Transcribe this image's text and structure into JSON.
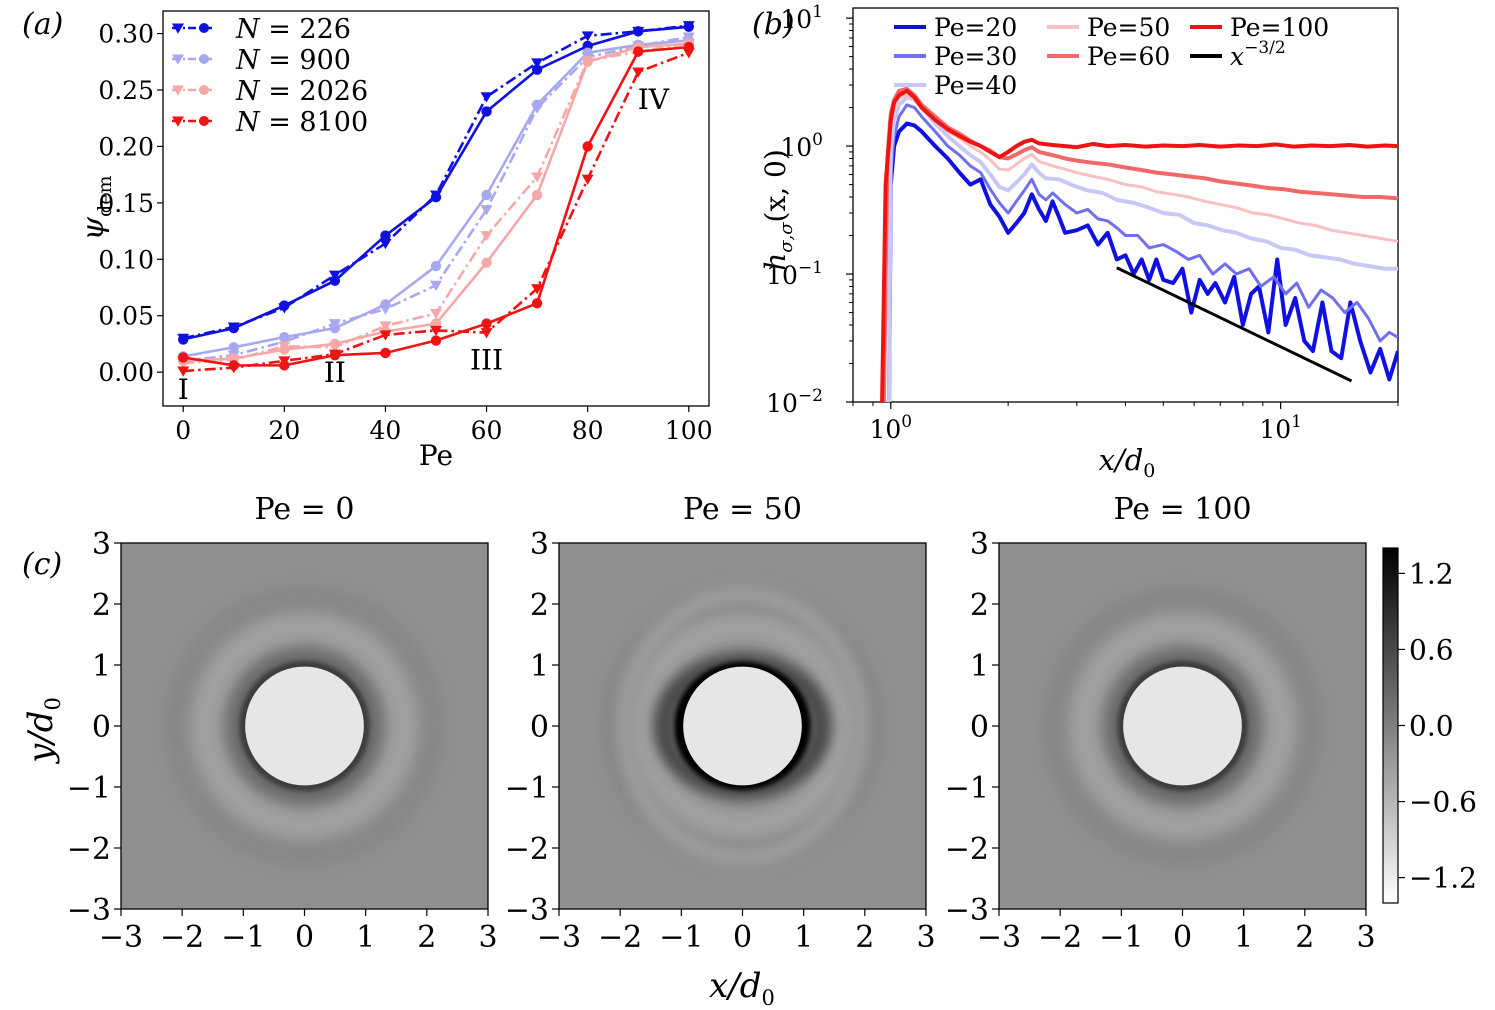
{
  "chart_data": [
    {
      "id": "a",
      "panel_label": "(a)",
      "type": "line",
      "xlabel": "Pe",
      "ylabel": "ψ",
      "ylabel_sub": "dem",
      "xlim": [
        -4,
        104
      ],
      "ylim": [
        -0.03,
        0.32
      ],
      "xticks": [
        0,
        20,
        40,
        60,
        80,
        100
      ],
      "xtick_labels": [
        "0",
        "20",
        "40",
        "60",
        "80",
        "100"
      ],
      "yticks": [
        0.0,
        0.05,
        0.1,
        0.15,
        0.2,
        0.25,
        0.3
      ],
      "ytick_labels": [
        "0.00",
        "0.05",
        "0.10",
        "0.15",
        "0.20",
        "0.25",
        "0.30"
      ],
      "legend_position": "top-left",
      "x": [
        0,
        10,
        20,
        30,
        40,
        50,
        60,
        70,
        80,
        90,
        100
      ],
      "series": [
        {
          "name": "N = 226",
          "legend_var": "N",
          "legend_value": "226",
          "color": "#1010e0",
          "circle": [
            0.029,
            0.039,
            0.059,
            0.081,
            0.121,
            0.155,
            0.231,
            0.268,
            0.289,
            0.302,
            0.306
          ],
          "triangle": [
            0.03,
            0.04,
            0.057,
            0.086,
            0.114,
            0.157,
            0.244,
            0.274,
            0.298,
            0.302,
            0.307
          ]
        },
        {
          "name": "N = 900",
          "legend_var": "N",
          "legend_value": "900",
          "color": "#a8a8f0",
          "circle": [
            0.014,
            0.022,
            0.031,
            0.039,
            0.06,
            0.094,
            0.157,
            0.237,
            0.283,
            0.29,
            0.294
          ],
          "triangle": [
            0.01,
            0.015,
            0.027,
            0.043,
            0.056,
            0.077,
            0.144,
            0.234,
            0.279,
            0.289,
            0.297
          ]
        },
        {
          "name": "N = 2026",
          "legend_var": "N",
          "legend_value": "2026",
          "color": "#f6a8a8",
          "circle": [
            0.01,
            0.012,
            0.02,
            0.025,
            0.036,
            0.043,
            0.097,
            0.157,
            0.275,
            0.288,
            0.291
          ],
          "triangle": [
            0.008,
            0.011,
            0.023,
            0.022,
            0.041,
            0.052,
            0.121,
            0.173,
            0.276,
            0.284,
            0.291
          ]
        },
        {
          "name": "N = 8100",
          "legend_var": "N",
          "legend_value": "8100",
          "color": "#ee1414",
          "circle": [
            0.013,
            0.006,
            0.006,
            0.015,
            0.017,
            0.028,
            0.043,
            0.061,
            0.2,
            0.284,
            0.288
          ],
          "triangle": [
            0.001,
            0.004,
            0.01,
            0.016,
            0.033,
            0.037,
            0.035,
            0.074,
            0.171,
            0.266,
            0.283
          ]
        }
      ],
      "annotations": [
        {
          "text": "I",
          "x": 0,
          "y": -0.015
        },
        {
          "text": "II",
          "x": 30,
          "y": 0.0
        },
        {
          "text": "III",
          "x": 60,
          "y": 0.011
        },
        {
          "text": "IV",
          "x": 93,
          "y": 0.242
        }
      ]
    },
    {
      "id": "b",
      "panel_label": "(b)",
      "type": "line",
      "xscale": "log",
      "yscale": "log",
      "xlabel": "x/d",
      "xlabel_sub": "0",
      "ylabel": "h",
      "ylabel_sub": "σ,σ",
      "ylabel_tail": "(x, 0)",
      "xlim": [
        0.8,
        20
      ],
      "ylim": [
        0.01,
        12
      ],
      "xticks": [
        {
          "value": 1,
          "base": "10",
          "exp": "0"
        },
        {
          "value": 10,
          "base": "10",
          "exp": "1"
        }
      ],
      "yticks": [
        {
          "value": 0.01,
          "base": "10",
          "exp": "−2"
        },
        {
          "value": 0.1,
          "base": "10",
          "exp": "−1"
        },
        {
          "value": 1,
          "base": "10",
          "exp": "0"
        },
        {
          "value": 10,
          "base": "10",
          "exp": "1"
        }
      ],
      "legend_position": "top-right",
      "series": [
        {
          "name": "Pe=20",
          "color": "#1010e0",
          "width": 4,
          "x": [
            0.97,
            0.99,
            1.0,
            1.02,
            1.05,
            1.1,
            1.15,
            1.2,
            1.3,
            1.4,
            1.5,
            1.6,
            1.7,
            1.8,
            1.9,
            2.0,
            2.1,
            2.2,
            2.3,
            2.4,
            2.5,
            2.6,
            2.7,
            2.8,
            3.0,
            3.2,
            3.4,
            3.6,
            3.8,
            4.0,
            4.2,
            4.4,
            4.6,
            4.8,
            5.0,
            5.3,
            5.6,
            5.9,
            6.2,
            6.5,
            6.8,
            7.2,
            7.6,
            8.0,
            8.4,
            8.8,
            9.3,
            9.8,
            10.3,
            10.9,
            11.5,
            12.1,
            12.8,
            13.5,
            14.3,
            15.1,
            16.0,
            17.0,
            18.0,
            19.0,
            20.0
          ],
          "y": [
            0.01,
            0.01,
            0.5,
            1.0,
            1.3,
            1.5,
            1.45,
            1.3,
            1.0,
            0.8,
            0.62,
            0.5,
            0.55,
            0.35,
            0.28,
            0.21,
            0.25,
            0.3,
            0.42,
            0.32,
            0.26,
            0.37,
            0.28,
            0.21,
            0.22,
            0.24,
            0.17,
            0.21,
            0.13,
            0.14,
            0.1,
            0.13,
            0.09,
            0.13,
            0.09,
            0.085,
            0.11,
            0.05,
            0.09,
            0.07,
            0.085,
            0.06,
            0.095,
            0.04,
            0.07,
            0.08,
            0.035,
            0.13,
            0.04,
            0.065,
            0.03,
            0.025,
            0.06,
            0.025,
            0.022,
            0.06,
            0.03,
            0.017,
            0.026,
            0.015,
            0.025
          ]
        },
        {
          "name": "Pe=30",
          "color": "#6f6ff0",
          "width": 3,
          "x": [
            0.97,
            0.99,
            1.0,
            1.02,
            1.05,
            1.1,
            1.15,
            1.2,
            1.3,
            1.4,
            1.5,
            1.6,
            1.7,
            1.8,
            1.9,
            2.0,
            2.1,
            2.2,
            2.3,
            2.4,
            2.5,
            2.6,
            2.8,
            3.0,
            3.2,
            3.4,
            3.6,
            3.8,
            4.0,
            4.3,
            4.6,
            5.0,
            5.4,
            5.8,
            6.2,
            6.7,
            7.2,
            7.7,
            8.3,
            8.9,
            9.6,
            10.3,
            11.0,
            11.8,
            12.7,
            13.6,
            14.6,
            15.7,
            16.8,
            18.0,
            19.0,
            20.0
          ],
          "y": [
            0.01,
            0.01,
            0.6,
            1.2,
            1.7,
            2.1,
            2.0,
            1.7,
            1.3,
            1.0,
            0.85,
            0.7,
            0.62,
            0.46,
            0.36,
            0.3,
            0.37,
            0.45,
            0.55,
            0.42,
            0.38,
            0.43,
            0.35,
            0.3,
            0.32,
            0.27,
            0.26,
            0.23,
            0.2,
            0.2,
            0.16,
            0.17,
            0.15,
            0.13,
            0.14,
            0.1,
            0.12,
            0.1,
            0.11,
            0.08,
            0.095,
            0.07,
            0.085,
            0.055,
            0.075,
            0.065,
            0.05,
            0.06,
            0.045,
            0.03,
            0.035,
            0.032
          ]
        },
        {
          "name": "Pe=40",
          "color": "#c8c8f6",
          "width": 4,
          "x": [
            0.97,
            0.99,
            1.0,
            1.02,
            1.05,
            1.1,
            1.15,
            1.2,
            1.3,
            1.4,
            1.5,
            1.6,
            1.7,
            1.8,
            1.9,
            2.0,
            2.1,
            2.2,
            2.3,
            2.4,
            2.5,
            2.7,
            2.9,
            3.2,
            3.5,
            3.8,
            4.2,
            4.6,
            5.0,
            5.5,
            6.0,
            6.5,
            7.1,
            7.7,
            8.4,
            9.2,
            10.0,
            10.9,
            11.9,
            13.0,
            14.2,
            15.5,
            17.0,
            18.5,
            20.0
          ],
          "y": [
            0.01,
            0.01,
            0.9,
            1.6,
            2.1,
            2.4,
            2.3,
            2.0,
            1.5,
            1.2,
            1.0,
            0.85,
            0.75,
            0.6,
            0.48,
            0.45,
            0.52,
            0.6,
            0.72,
            0.62,
            0.56,
            0.55,
            0.5,
            0.45,
            0.43,
            0.38,
            0.36,
            0.33,
            0.3,
            0.29,
            0.25,
            0.24,
            0.22,
            0.21,
            0.19,
            0.18,
            0.16,
            0.155,
            0.14,
            0.135,
            0.13,
            0.12,
            0.115,
            0.11,
            0.11
          ]
        },
        {
          "name": "Pe=50",
          "color": "#f8c0c0",
          "width": 3,
          "x": [
            0.96,
            0.98,
            1.0,
            1.02,
            1.05,
            1.1,
            1.15,
            1.2,
            1.3,
            1.4,
            1.5,
            1.6,
            1.7,
            1.8,
            1.9,
            2.0,
            2.1,
            2.2,
            2.3,
            2.4,
            2.6,
            2.8,
            3.0,
            3.3,
            3.6,
            4.0,
            4.4,
            4.8,
            5.3,
            5.8,
            6.4,
            7.0,
            7.7,
            8.5,
            9.3,
            10.2,
            11.2,
            12.3,
            13.5,
            14.8,
            16.3,
            18.0,
            20.0
          ],
          "y": [
            0.01,
            0.5,
            1.5,
            2.0,
            2.4,
            2.5,
            2.3,
            2.0,
            1.6,
            1.3,
            1.15,
            1.0,
            0.9,
            0.78,
            0.66,
            0.65,
            0.72,
            0.8,
            0.86,
            0.76,
            0.7,
            0.66,
            0.62,
            0.58,
            0.55,
            0.5,
            0.48,
            0.44,
            0.42,
            0.4,
            0.37,
            0.35,
            0.33,
            0.3,
            0.29,
            0.27,
            0.25,
            0.24,
            0.22,
            0.21,
            0.2,
            0.19,
            0.18
          ]
        },
        {
          "name": "Pe=60",
          "color": "#f26868",
          "width": 4,
          "x": [
            0.96,
            0.98,
            1.0,
            1.02,
            1.05,
            1.1,
            1.15,
            1.2,
            1.3,
            1.4,
            1.5,
            1.6,
            1.7,
            1.8,
            1.9,
            2.0,
            2.1,
            2.2,
            2.3,
            2.4,
            2.6,
            2.8,
            3.0,
            3.3,
            3.6,
            4.0,
            4.4,
            4.8,
            5.3,
            5.8,
            6.4,
            7.0,
            7.7,
            8.5,
            9.3,
            10.2,
            11.2,
            12.3,
            13.5,
            14.8,
            16.3,
            18.0,
            20.0
          ],
          "y": [
            0.01,
            0.8,
            1.8,
            2.3,
            2.7,
            2.8,
            2.5,
            2.1,
            1.7,
            1.4,
            1.25,
            1.1,
            1.0,
            0.92,
            0.82,
            0.8,
            0.86,
            0.93,
            0.98,
            0.9,
            0.85,
            0.8,
            0.77,
            0.74,
            0.72,
            0.68,
            0.65,
            0.62,
            0.6,
            0.58,
            0.56,
            0.53,
            0.51,
            0.49,
            0.47,
            0.46,
            0.44,
            0.43,
            0.42,
            0.41,
            0.4,
            0.4,
            0.39
          ]
        },
        {
          "name": "Pe=100",
          "color": "#ee1414",
          "width": 4,
          "x": [
            0.95,
            0.97,
            1.0,
            1.02,
            1.05,
            1.1,
            1.15,
            1.2,
            1.3,
            1.4,
            1.5,
            1.6,
            1.7,
            1.8,
            1.9,
            2.0,
            2.1,
            2.2,
            2.3,
            2.4,
            2.6,
            2.8,
            3.0,
            3.3,
            3.6,
            4.0,
            4.5,
            5.0,
            5.6,
            6.2,
            7.0,
            7.8,
            8.7,
            9.7,
            10.8,
            12.0,
            13.4,
            15.0,
            16.7,
            18.5,
            20.0
          ],
          "y": [
            0.01,
            0.5,
            1.6,
            2.2,
            2.5,
            2.7,
            2.4,
            2.0,
            1.6,
            1.35,
            1.2,
            1.08,
            1.0,
            0.9,
            0.82,
            0.9,
            1.0,
            1.08,
            1.12,
            1.05,
            1.02,
            1.0,
            0.98,
            1.04,
            1.0,
            1.02,
            0.99,
            1.01,
            1.0,
            1.02,
            0.99,
            1.01,
            1.0,
            1.03,
            0.99,
            1.01,
            1.0,
            1.02,
            0.99,
            1.01,
            1.0
          ]
        },
        {
          "name": "x^{−3/2}",
          "legend_base": "x",
          "legend_exp": "−3/2",
          "color": "#000000",
          "width": 3,
          "x": [
            3.8,
            15.2
          ],
          "y": [
            0.112,
            0.0146
          ]
        }
      ]
    },
    {
      "id": "c",
      "panel_label": "(c)",
      "type": "heatmap",
      "panels": [
        {
          "title": "Pe = 0",
          "ring_strength": 0.55,
          "anisotropy": 0.0
        },
        {
          "title": "Pe = 50",
          "ring_strength": 1.0,
          "anisotropy": 1.0
        },
        {
          "title": "Pe = 100",
          "ring_strength": 0.6,
          "anisotropy": 0.15
        }
      ],
      "xlabel": "x/d",
      "xlabel_sub": "0",
      "ylabel": "y/d",
      "ylabel_sub": "0",
      "xlim": [
        -3,
        3
      ],
      "ylim": [
        -3,
        3
      ],
      "ticks": [
        -3,
        -2,
        -1,
        0,
        1,
        2,
        3
      ],
      "tick_labels": [
        "−3",
        "−2",
        "−1",
        "0",
        "1",
        "2",
        "3"
      ],
      "colorbar": {
        "range": [
          -1.4,
          1.4
        ],
        "ticks": [
          1.2,
          0.6,
          0.0,
          -0.6,
          -1.2
        ],
        "tick_labels": [
          "1.2",
          "0.6",
          "0.0",
          "−0.6",
          "−1.2"
        ],
        "colormap": "gray_r"
      }
    }
  ]
}
